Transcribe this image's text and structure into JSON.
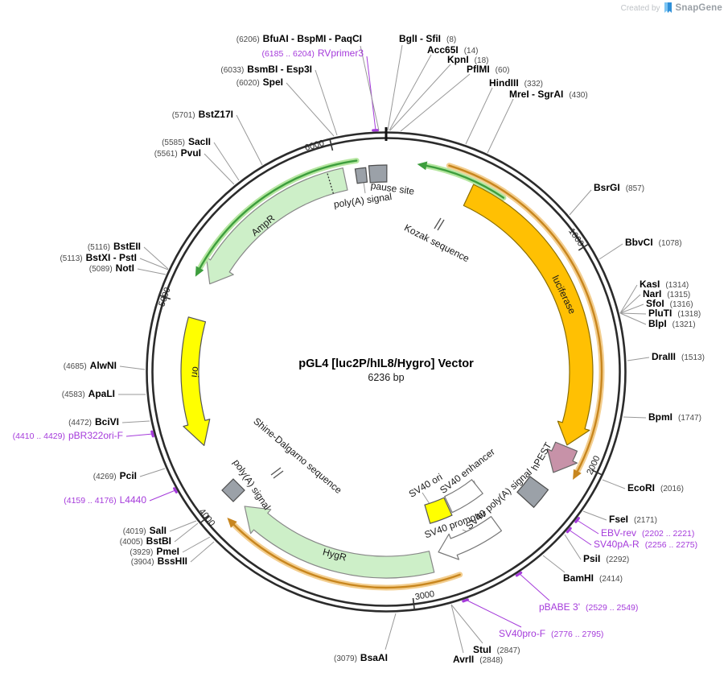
{
  "branding": {
    "created_by": "Created by",
    "app_name": "SnapGene"
  },
  "title": {
    "name": "pGL4 [luc2P/hIL8/Hygro] Vector",
    "size": "6236 bp"
  },
  "colors": {
    "primer_purple": "#A53BDB",
    "enzyme_black": "#000000",
    "position_gray": "#4a4a4a",
    "ring_black": "#2b2b2b",
    "luciferase_gold": "#FFC003",
    "resistance_green": "#CDEFC8",
    "ori_yellow": "#FFFF00",
    "pest_pink": "#C792A8",
    "signal_gray": "#9BA1A8",
    "transcript_green": "#3D9E3D",
    "transcript_green_glow": "#B5E6A0",
    "transcript_orange": "#C8861E",
    "transcript_orange_glow": "#F3CE8F",
    "snapgene_blue": "#3FA9F5",
    "white": "#FFFFFF"
  },
  "position_ticks": [
    "1000",
    "2000",
    "3000",
    "4000",
    "5000",
    "6000"
  ],
  "sites": [
    {
      "name": "BglI - SfiI",
      "pos": "(8)"
    },
    {
      "name": "Acc65I",
      "pos": "(14)"
    },
    {
      "name": "KpnI",
      "pos": "(18)"
    },
    {
      "name": "PflMI",
      "pos": "(60)"
    },
    {
      "name": "HindIII",
      "pos": "(332)"
    },
    {
      "name": "MreI - SgrAI",
      "pos": "(430)"
    },
    {
      "name": "BsrGI",
      "pos": "(857)"
    },
    {
      "name": "BbvCI",
      "pos": "(1078)"
    },
    {
      "name": "KasI",
      "pos": "(1314)"
    },
    {
      "name": "NarI",
      "pos": "(1315)"
    },
    {
      "name": "SfoI",
      "pos": "(1316)"
    },
    {
      "name": "PluTI",
      "pos": "(1318)"
    },
    {
      "name": "BlpI",
      "pos": "(1321)"
    },
    {
      "name": "DraIII",
      "pos": "(1513)"
    },
    {
      "name": "BpmI",
      "pos": "(1747)"
    },
    {
      "name": "EcoRI",
      "pos": "(2016)"
    },
    {
      "name": "FseI",
      "pos": "(2171)"
    },
    {
      "name": "EBV-rev",
      "pos": "(2202 .. 2221)",
      "type": "primer"
    },
    {
      "name": "SV40pA-R",
      "pos": "(2256 .. 2275)",
      "type": "primer"
    },
    {
      "name": "PsiI",
      "pos": "(2292)"
    },
    {
      "name": "BamHI",
      "pos": "(2414)"
    },
    {
      "name": "pBABE 3'",
      "pos": "(2529 .. 2549)",
      "type": "primer"
    },
    {
      "name": "SV40pro-F",
      "pos": "(2776 .. 2795)",
      "type": "primer"
    },
    {
      "name": "StuI",
      "pos": "(2847)"
    },
    {
      "name": "AvrII",
      "pos": "(2848)"
    },
    {
      "name": "BsaAI",
      "pos": "(3079)"
    },
    {
      "name": "BssHII",
      "pos": "(3904)"
    },
    {
      "name": "PmeI",
      "pos": "(3929)"
    },
    {
      "name": "BstBI",
      "pos": "(4005)"
    },
    {
      "name": "SalI",
      "pos": "(4019)"
    },
    {
      "name": "L4440",
      "pos": "(4159 .. 4176)",
      "type": "primer"
    },
    {
      "name": "PciI",
      "pos": "(4269)"
    },
    {
      "name": "pBR322ori-F",
      "pos": "(4410 .. 4429)",
      "type": "primer"
    },
    {
      "name": "BciVI",
      "pos": "(4472)"
    },
    {
      "name": "ApaLI",
      "pos": "(4583)"
    },
    {
      "name": "AlwNI",
      "pos": "(4685)"
    },
    {
      "name": "NotI",
      "pos": "(5089)"
    },
    {
      "name": "BstXI - PstI",
      "pos": "(5113)"
    },
    {
      "name": "BstEII",
      "pos": "(5116)"
    },
    {
      "name": "PvuI",
      "pos": "(5561)"
    },
    {
      "name": "SacII",
      "pos": "(5585)"
    },
    {
      "name": "BstZ17I",
      "pos": "(5701)"
    },
    {
      "name": "SpeI",
      "pos": "(6020)"
    },
    {
      "name": "BsmBI - Esp3I",
      "pos": "(6033)"
    },
    {
      "name": "RVprimer3",
      "pos": "(6185 .. 6204)",
      "type": "primer"
    },
    {
      "name": "BfuAI - BspMI - PaqCI",
      "pos": "(6206)"
    }
  ],
  "features": [
    {
      "label": "AmpR"
    },
    {
      "label": "ori"
    },
    {
      "label": "luciferase"
    },
    {
      "label": "HygR"
    },
    {
      "label": "hPEST"
    },
    {
      "label": "SV40 ori"
    },
    {
      "label": "SV40 enhancer"
    },
    {
      "label": "SV40 promoter"
    },
    {
      "label": "SV40 poly(A) signal"
    },
    {
      "label": "poly(A) signal"
    },
    {
      "label": "pause site"
    },
    {
      "label": "Kozak sequence"
    },
    {
      "label": "Shine-Dalgarno sequence"
    },
    {
      "label": "poly(A) signal"
    }
  ]
}
